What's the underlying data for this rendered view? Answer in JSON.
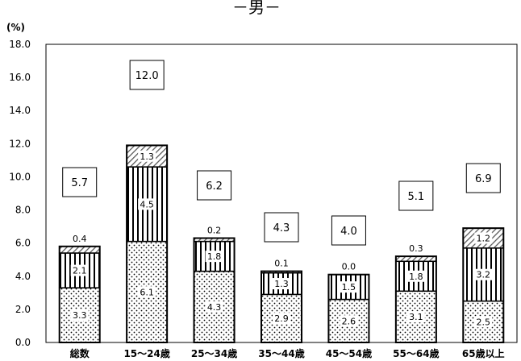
{
  "chart_data": {
    "type": "bar",
    "stacked": true,
    "title": "－男－",
    "y_unit": "(%)",
    "ylim": [
      0,
      18
    ],
    "y_ticks": [
      "0.0",
      "2.0",
      "4.0",
      "6.0",
      "8.0",
      "10.0",
      "12.0",
      "14.0",
      "16.0",
      "18.0"
    ],
    "grid": false,
    "categories": [
      "総数",
      "15～24歳",
      "25～34歳",
      "35～44歳",
      "45～54歳",
      "55～64歳",
      "65歳以上"
    ],
    "series": [
      {
        "pattern": "dots",
        "values": [
          3.3,
          6.1,
          4.3,
          2.9,
          2.6,
          3.1,
          2.5
        ]
      },
      {
        "pattern": "vertical-lines",
        "values": [
          2.1,
          4.5,
          1.8,
          1.3,
          1.5,
          1.8,
          3.2
        ]
      },
      {
        "pattern": "diagonal-hatch",
        "values": [
          0.4,
          1.3,
          0.2,
          0.1,
          0.0,
          0.3,
          1.2
        ]
      }
    ],
    "totals": [
      5.7,
      12.0,
      6.2,
      4.3,
      4.0,
      5.1,
      6.9
    ],
    "segment_labels": [
      [
        "3.3",
        "2.1",
        "0.4"
      ],
      [
        "6.1",
        "4.5",
        "1.3"
      ],
      [
        "4.3",
        "1.8",
        "0.2"
      ],
      [
        "2.9",
        "1.3",
        "0.1"
      ],
      [
        "2.6",
        "1.5",
        "0.0"
      ],
      [
        "3.1",
        "1.8",
        "0.3"
      ],
      [
        "2.5",
        "3.2",
        "1.2"
      ]
    ],
    "total_labels": [
      "5.7",
      "12.0",
      "6.2",
      "4.3",
      "4.0",
      "5.1",
      "6.9"
    ]
  }
}
